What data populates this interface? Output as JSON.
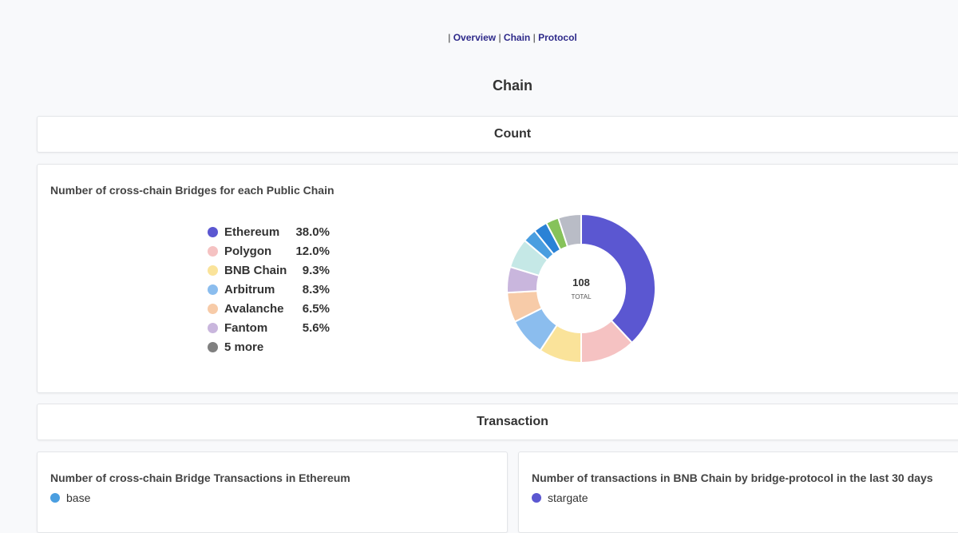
{
  "nav": {
    "separator": "|",
    "overview": "Overview",
    "chain": "Chain",
    "protocol": "Protocol"
  },
  "page_title": "Chain",
  "sections": {
    "count": "Count",
    "transaction": "Transaction"
  },
  "count_card": {
    "title": "Number of cross-chain Bridges for each Public Chain"
  },
  "chart_data": {
    "type": "pie",
    "title": "Number of cross-chain Bridges for each Public Chain",
    "total_value": "108",
    "total_label": "TOTAL",
    "legend": [
      {
        "label": "Ethereum",
        "pct": "38.0%",
        "color": "#5b57d1"
      },
      {
        "label": "Polygon",
        "pct": "12.0%",
        "color": "#f5c2c2"
      },
      {
        "label": "BNB Chain",
        "pct": "9.3%",
        "color": "#fae39a"
      },
      {
        "label": "Arbitrum",
        "pct": "8.3%",
        "color": "#8bbdee"
      },
      {
        "label": "Avalanche",
        "pct": "6.5%",
        "color": "#f7cba8"
      },
      {
        "label": "Fantom",
        "pct": "5.6%",
        "color": "#c9b6dd"
      },
      {
        "label": "5 more",
        "pct": "",
        "color": "#808080"
      }
    ],
    "slices": [
      {
        "label": "Ethereum",
        "value": 38.0,
        "color": "#5b57d1"
      },
      {
        "label": "Polygon",
        "value": 12.0,
        "color": "#f5c2c2"
      },
      {
        "label": "BNB Chain",
        "value": 9.3,
        "color": "#fae39a"
      },
      {
        "label": "Arbitrum",
        "value": 8.3,
        "color": "#8bbdee"
      },
      {
        "label": "Avalanche",
        "value": 6.5,
        "color": "#f7cba8"
      },
      {
        "label": "Fantom",
        "value": 5.6,
        "color": "#c9b6dd"
      },
      {
        "label": "",
        "value": 6.5,
        "color": "#c5e8e6"
      },
      {
        "label": "",
        "value": 3.0,
        "color": "#4a9ee0"
      },
      {
        "label": "",
        "value": 3.0,
        "color": "#2a82d6"
      },
      {
        "label": "",
        "value": 2.8,
        "color": "#86c25a"
      },
      {
        "label": "",
        "value": 5.0,
        "color": "#b9bcc6"
      }
    ]
  },
  "tx_card_left": {
    "title": "Number of cross-chain Bridge Transactions in Ethereum",
    "legend_label": "base",
    "legend_color": "#4a9ee0"
  },
  "tx_card_right": {
    "title": "Number of transactions in BNB Chain by bridge-protocol in the last 30 days",
    "legend_label": "stargate",
    "legend_color": "#5b57d1"
  }
}
